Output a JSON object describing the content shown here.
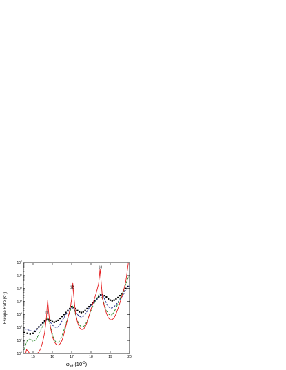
{
  "chart_data": {
    "type": "line",
    "title": "",
    "xlabel_main": "φ",
    "xlabel_sub": "att",
    "xlabel_unit_open": "(10",
    "xlabel_unit_exp": "-3",
    "xlabel_unit_close": ")",
    "ylabel_main": "Escape Rate (s",
    "ylabel_exp": "-1",
    "ylabel_close": ")",
    "xlim": [
      14.5,
      20.0
    ],
    "ylim_log10": [
      0,
      7
    ],
    "log_y": true,
    "grid": false,
    "legend": "none",
    "x_ticks": [
      15,
      16,
      17,
      18,
      19,
      20
    ],
    "x_tick_labels": [
      "15",
      "16",
      "17",
      "18",
      "19",
      "20"
    ],
    "y_ticks_log10": [
      0,
      1,
      2,
      3,
      4,
      5,
      6,
      7
    ],
    "y_tick_labels": [
      {
        "base": "10",
        "exp": "0"
      },
      {
        "base": "10",
        "exp": "1"
      },
      {
        "base": "10",
        "exp": "2"
      },
      {
        "base": "10",
        "exp": "3"
      },
      {
        "base": "10",
        "exp": "4"
      },
      {
        "base": "10",
        "exp": "5"
      },
      {
        "base": "10",
        "exp": "6"
      },
      {
        "base": "10",
        "exp": "7"
      }
    ],
    "annotations": [
      {
        "text": "11",
        "x": 15.68,
        "y_log10": 3.05
      },
      {
        "text": "12",
        "x": 17.02,
        "y_log10": 5.0
      },
      {
        "text": "13",
        "x": 18.48,
        "y_log10": 6.55
      }
    ],
    "series": [
      {
        "style": "scatter",
        "color": "#000000",
        "x": [
          14.55,
          14.7,
          14.85,
          15.0,
          15.1,
          15.2,
          15.3,
          15.4,
          15.5,
          15.6,
          15.7,
          15.8,
          15.9,
          16.0,
          16.1,
          16.2,
          16.3,
          16.4,
          16.5,
          16.6,
          16.7,
          16.8,
          16.9,
          17.0,
          17.1,
          17.2,
          17.3,
          17.4,
          17.5,
          17.6,
          17.7,
          17.8,
          17.9,
          18.0,
          18.1,
          18.2,
          18.3,
          18.4,
          18.5,
          18.6,
          18.7,
          18.8,
          18.9,
          19.0,
          19.1,
          19.2,
          19.3,
          19.4,
          19.5,
          19.6,
          19.7,
          19.8,
          19.9
        ],
        "y_log10": [
          1.6,
          1.55,
          1.5,
          1.55,
          1.7,
          1.9,
          2.05,
          2.2,
          2.35,
          2.5,
          2.6,
          2.62,
          2.55,
          2.45,
          2.4,
          2.45,
          2.55,
          2.7,
          2.85,
          3.0,
          3.15,
          3.3,
          3.45,
          3.6,
          3.55,
          3.45,
          3.3,
          3.2,
          3.15,
          3.2,
          3.3,
          3.45,
          3.6,
          3.75,
          3.9,
          4.05,
          4.2,
          4.35,
          4.5,
          4.55,
          4.45,
          4.35,
          4.2,
          4.1,
          4.05,
          4.1,
          4.2,
          4.3,
          4.45,
          4.6,
          4.8,
          5.0,
          5.15
        ]
      },
      {
        "style": "dash",
        "color": "#1f2a8c",
        "x": [
          14.55,
          14.7,
          14.85,
          15.0,
          15.1,
          15.2,
          15.3,
          15.4,
          15.5,
          15.6,
          15.7,
          15.8,
          15.9,
          16.0,
          16.1,
          16.2,
          16.3,
          16.4,
          16.5,
          16.6,
          16.7,
          16.8,
          16.9,
          17.0,
          17.1,
          17.2,
          17.3,
          17.4,
          17.5,
          17.6,
          17.7,
          17.8,
          17.9,
          18.0,
          18.1,
          18.2,
          18.3,
          18.4,
          18.5,
          18.6,
          18.7,
          18.8,
          18.9,
          19.0,
          19.1,
          19.2,
          19.3,
          19.4,
          19.5,
          19.6,
          19.7,
          19.8,
          19.9,
          19.97
        ],
        "y_log10": [
          1.9,
          1.85,
          1.75,
          1.7,
          1.75,
          1.85,
          2.0,
          2.15,
          2.3,
          2.45,
          2.55,
          2.55,
          2.4,
          2.2,
          2.05,
          2.0,
          2.05,
          2.25,
          2.5,
          2.75,
          3.0,
          3.2,
          3.4,
          3.55,
          3.45,
          3.2,
          3.0,
          2.85,
          2.8,
          2.85,
          3.0,
          3.25,
          3.5,
          3.7,
          3.85,
          4.0,
          4.15,
          4.3,
          4.5,
          4.5,
          4.2,
          3.85,
          3.6,
          3.5,
          3.5,
          3.6,
          3.75,
          3.95,
          4.15,
          4.35,
          4.6,
          4.85,
          5.1,
          5.2
        ]
      },
      {
        "style": "dashdot",
        "color": "#2e8b2e",
        "x": [
          14.55,
          14.62,
          14.7,
          14.8,
          14.9,
          15.0,
          15.1,
          15.2,
          15.3,
          15.4,
          15.5,
          15.6,
          15.7,
          15.75,
          15.8,
          15.9,
          16.0,
          16.1,
          16.2,
          16.3,
          16.4,
          16.5,
          16.6,
          16.7,
          16.8,
          16.9,
          17.0,
          17.05,
          17.1,
          17.2,
          17.3,
          17.4,
          17.5,
          17.6,
          17.7,
          17.8,
          17.9,
          18.0,
          18.1,
          18.2,
          18.3,
          18.4,
          18.45,
          18.5,
          18.6,
          18.7,
          18.8,
          18.9,
          19.0,
          19.1,
          19.2,
          19.3,
          19.4,
          19.5,
          19.6,
          19.7,
          19.8,
          19.9,
          19.97
        ],
        "y_log10": [
          0.3,
          0.7,
          1.0,
          1.1,
          1.05,
          0.95,
          1.0,
          1.2,
          1.5,
          1.8,
          2.1,
          2.4,
          2.65,
          2.75,
          2.6,
          2.1,
          1.5,
          1.05,
          0.85,
          0.85,
          1.0,
          1.35,
          1.8,
          2.3,
          2.75,
          3.2,
          3.55,
          3.65,
          3.5,
          3.0,
          2.5,
          2.2,
          2.05,
          2.05,
          2.2,
          2.5,
          2.9,
          3.3,
          3.65,
          3.95,
          4.25,
          4.5,
          4.6,
          4.55,
          4.2,
          3.7,
          3.3,
          3.05,
          2.95,
          3.0,
          3.2,
          3.5,
          3.85,
          4.2,
          4.55,
          4.9,
          5.3,
          5.7,
          6.0
        ]
      },
      {
        "style": "line",
        "color": "#e41a1c",
        "x": [
          14.62,
          14.66,
          14.72,
          14.8,
          14.9,
          15.0,
          15.1,
          15.2,
          15.3,
          15.4,
          15.5,
          15.6,
          15.65,
          15.7,
          15.73,
          15.76,
          15.8,
          15.85,
          15.9,
          16.0,
          16.1,
          16.2,
          16.3,
          16.4,
          16.5,
          16.6,
          16.7,
          16.8,
          16.9,
          16.95,
          17.0,
          17.03,
          17.06,
          17.1,
          17.15,
          17.2,
          17.3,
          17.4,
          17.5,
          17.6,
          17.7,
          17.8,
          17.9,
          18.0,
          18.1,
          18.2,
          18.3,
          18.4,
          18.44,
          18.47,
          18.5,
          18.55,
          18.6,
          18.7,
          18.8,
          18.9,
          19.0,
          19.1,
          19.2,
          19.3,
          19.4,
          19.5,
          19.6,
          19.7,
          19.8,
          19.85,
          19.9,
          19.94,
          19.97
        ],
        "y_log10": [
          0.0,
          0.3,
          0.2,
          0.05,
          0.0,
          0.0,
          0.0,
          0.0,
          0.1,
          0.4,
          0.9,
          1.6,
          2.2,
          2.9,
          3.6,
          4.1,
          3.3,
          2.6,
          2.0,
          1.3,
          0.9,
          0.7,
          0.65,
          0.75,
          1.0,
          1.5,
          2.1,
          2.7,
          3.3,
          3.7,
          4.2,
          4.9,
          5.4,
          4.6,
          3.8,
          3.1,
          2.4,
          2.0,
          1.85,
          1.85,
          2.05,
          2.4,
          2.9,
          3.4,
          3.85,
          4.3,
          4.8,
          5.4,
          6.0,
          6.5,
          6.0,
          5.1,
          4.2,
          3.6,
          3.1,
          2.75,
          2.6,
          2.6,
          2.75,
          3.05,
          3.45,
          3.9,
          4.4,
          4.9,
          5.5,
          6.0,
          6.55,
          7.0,
          7.0
        ]
      }
    ]
  }
}
